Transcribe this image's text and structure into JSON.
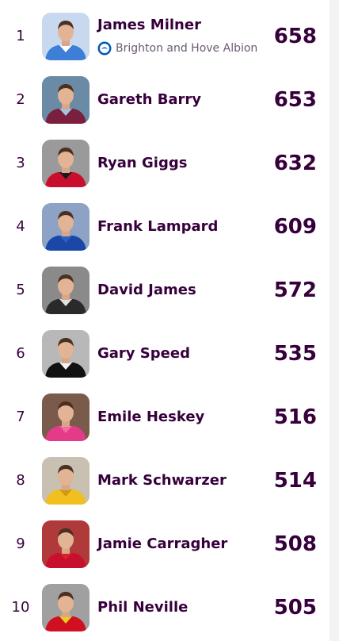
{
  "rows": [
    {
      "rank": 1,
      "name": "James Milner",
      "club": "Brighton and Hove Albion",
      "value": 658
    },
    {
      "rank": 2,
      "name": "Gareth Barry",
      "value": 653
    },
    {
      "rank": 3,
      "name": "Ryan Giggs",
      "value": 632
    },
    {
      "rank": 4,
      "name": "Frank Lampard",
      "value": 609
    },
    {
      "rank": 5,
      "name": "David James",
      "value": 572
    },
    {
      "rank": 6,
      "name": "Gary Speed",
      "value": 535
    },
    {
      "rank": 7,
      "name": "Emile Heskey",
      "value": 516
    },
    {
      "rank": 8,
      "name": "Mark Schwarzer",
      "value": 514
    },
    {
      "rank": 9,
      "name": "Jamie Carragher",
      "value": 508
    },
    {
      "rank": 10,
      "name": "Phil Neville",
      "value": 505
    }
  ]
}
